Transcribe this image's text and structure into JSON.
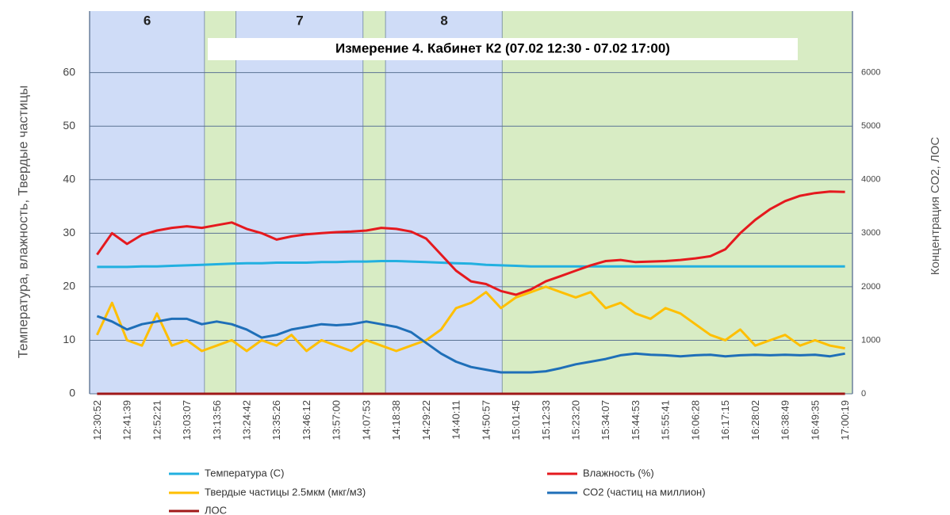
{
  "chart_data": {
    "type": "line",
    "title": "Измерение 4. Кабинет К2 (07.02 12:30 - 07.02 17:00)",
    "y_label": "Температура, влажность, Твердые частицы",
    "y2_label": "Концентрация СО2, ЛОС",
    "categories": [
      "12:30:52",
      null,
      "12:41:39",
      null,
      "12:52:21",
      null,
      "13:03:07",
      null,
      "13:13:56",
      null,
      "13:24:42",
      null,
      "13:35:26",
      null,
      "13:46:12",
      null,
      "13:57:00",
      null,
      "14:07:53",
      null,
      "14:18:38",
      null,
      "14:29:22",
      null,
      "14:40:11",
      null,
      "14:50:57",
      null,
      "15:01:45",
      null,
      "15:12:33",
      null,
      "15:23:20",
      null,
      "15:34:07",
      null,
      "15:44:53",
      null,
      "15:55:41",
      null,
      "16:06:28",
      null,
      "16:17:15",
      null,
      "16:28:02",
      null,
      "16:38:49",
      null,
      "16:49:35",
      null,
      "17:00:19"
    ],
    "bands": [
      {
        "start": -0.5,
        "end": 7.2,
        "color": "#cfdcf7",
        "label": "6"
      },
      {
        "start": 7.2,
        "end": 9.3,
        "color": "#d8ecc4"
      },
      {
        "start": 9.3,
        "end": 17.8,
        "color": "#cfdcf7",
        "label": "7"
      },
      {
        "start": 17.8,
        "end": 19.3,
        "color": "#d8ecc4"
      },
      {
        "start": 19.3,
        "end": 27.1,
        "color": "#cfdcf7",
        "label": "8"
      },
      {
        "start": 27.1,
        "end": 50.5,
        "color": "#d8ecc4"
      }
    ],
    "series": [
      {
        "name": "Температура (С)",
        "color": "#22b0e0",
        "values": [
          23.7,
          23.7,
          23.7,
          23.8,
          23.8,
          23.9,
          24,
          24.1,
          24.2,
          24.3,
          24.4,
          24.4,
          24.5,
          24.5,
          24.5,
          24.6,
          24.6,
          24.7,
          24.7,
          24.8,
          24.8,
          24.7,
          24.6,
          24.5,
          24.4,
          24.3,
          24.1,
          24,
          23.9,
          23.8,
          23.8,
          23.8,
          23.8,
          23.8,
          23.8,
          23.8,
          23.8,
          23.8,
          23.8,
          23.8,
          23.8,
          23.8,
          23.8,
          23.8,
          23.8,
          23.8,
          23.8,
          23.8,
          23.8,
          23.8,
          23.8
        ]
      },
      {
        "name": "Влажность (%)",
        "color": "#e5191e",
        "values": [
          26,
          30,
          28,
          29.7,
          30.5,
          31,
          31.3,
          31,
          31.5,
          32,
          30.8,
          30,
          28.8,
          29.4,
          29.8,
          30,
          30.2,
          30.3,
          30.5,
          31,
          30.8,
          30.3,
          29,
          26,
          23,
          21,
          20.5,
          19.2,
          18.5,
          19.5,
          21,
          22,
          23,
          24,
          24.8,
          25,
          24.6,
          24.7,
          24.8,
          25,
          25.3,
          25.7,
          27,
          30,
          32.5,
          34.5,
          36,
          37,
          37.5,
          37.8,
          37.7
        ]
      },
      {
        "name": "Твердые частицы 2.5мкм  (мкг/м3)",
        "color": "#ffbf00",
        "values": [
          11,
          17,
          10,
          9,
          15,
          9,
          10,
          8,
          9,
          10,
          8,
          10,
          9,
          11,
          8,
          10,
          9,
          8,
          10,
          9,
          8,
          9,
          10,
          12,
          16,
          17,
          19,
          16,
          18,
          19,
          20,
          19,
          18,
          19,
          16,
          17,
          15,
          14,
          16,
          15,
          13,
          11,
          10,
          12,
          9,
          10,
          11,
          9,
          10,
          9,
          8.5
        ]
      },
      {
        "name": "СО2 (частиц на миллион)",
        "color": "#1f6fb8",
        "axis": "y2",
        "values": [
          1450,
          1350,
          1200,
          1300,
          1350,
          1400,
          1400,
          1300,
          1350,
          1300,
          1200,
          1050,
          1100,
          1200,
          1250,
          1300,
          1280,
          1300,
          1350,
          1300,
          1250,
          1150,
          950,
          750,
          600,
          500,
          450,
          400,
          400,
          400,
          420,
          480,
          550,
          600,
          650,
          720,
          750,
          730,
          720,
          700,
          720,
          730,
          700,
          720,
          730,
          720,
          730,
          720,
          730,
          700,
          750
        ]
      },
      {
        "name": "ЛОС",
        "color": "#a01818",
        "values": [
          0,
          0,
          0,
          0,
          0,
          0,
          0,
          0,
          0,
          0,
          0,
          0,
          0,
          0,
          0,
          0,
          0,
          0,
          0,
          0,
          0,
          0,
          0,
          0,
          0,
          0,
          0,
          0,
          0,
          0,
          0,
          0,
          0,
          0,
          0,
          0,
          0,
          0,
          0,
          0,
          0,
          0,
          0,
          0,
          0,
          0,
          0,
          0,
          0,
          0,
          0
        ]
      }
    ],
    "ylim": [
      0,
      71.5
    ],
    "yticks": [
      0,
      10,
      20,
      30,
      40,
      50,
      60
    ],
    "y2lim": [
      0,
      7150
    ],
    "y2ticks": [
      0,
      1000,
      2000,
      3000,
      4000,
      5000,
      6000
    ],
    "grid": true
  }
}
